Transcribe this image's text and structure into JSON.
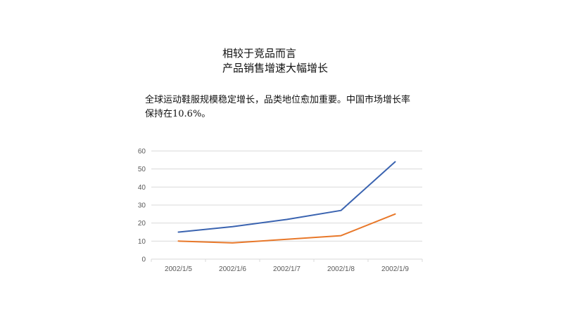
{
  "heading": {
    "line1": "相较于竞品而言",
    "line2": "产品销售增速大幅增长"
  },
  "body_text": "全球运动鞋服规模稳定增长，品类地位愈加重要。中国市场增长率保持在10.6%。",
  "colors": {
    "series_blue": "#3a63b0",
    "series_orange": "#e8782a",
    "grid": "#d9d9d9",
    "axis_text": "#595959"
  },
  "chart_data": {
    "type": "line",
    "categories": [
      "2002/1/5",
      "2002/1/6",
      "2002/1/7",
      "2002/1/8",
      "2002/1/9"
    ],
    "series": [
      {
        "values": [
          15,
          18,
          22,
          27,
          54
        ]
      },
      {
        "values": [
          10,
          9,
          11,
          13,
          25
        ]
      }
    ],
    "ylim": [
      0,
      60
    ],
    "yticks": [
      0,
      10,
      20,
      30,
      40,
      50,
      60
    ],
    "grid": true,
    "legend": "none"
  }
}
